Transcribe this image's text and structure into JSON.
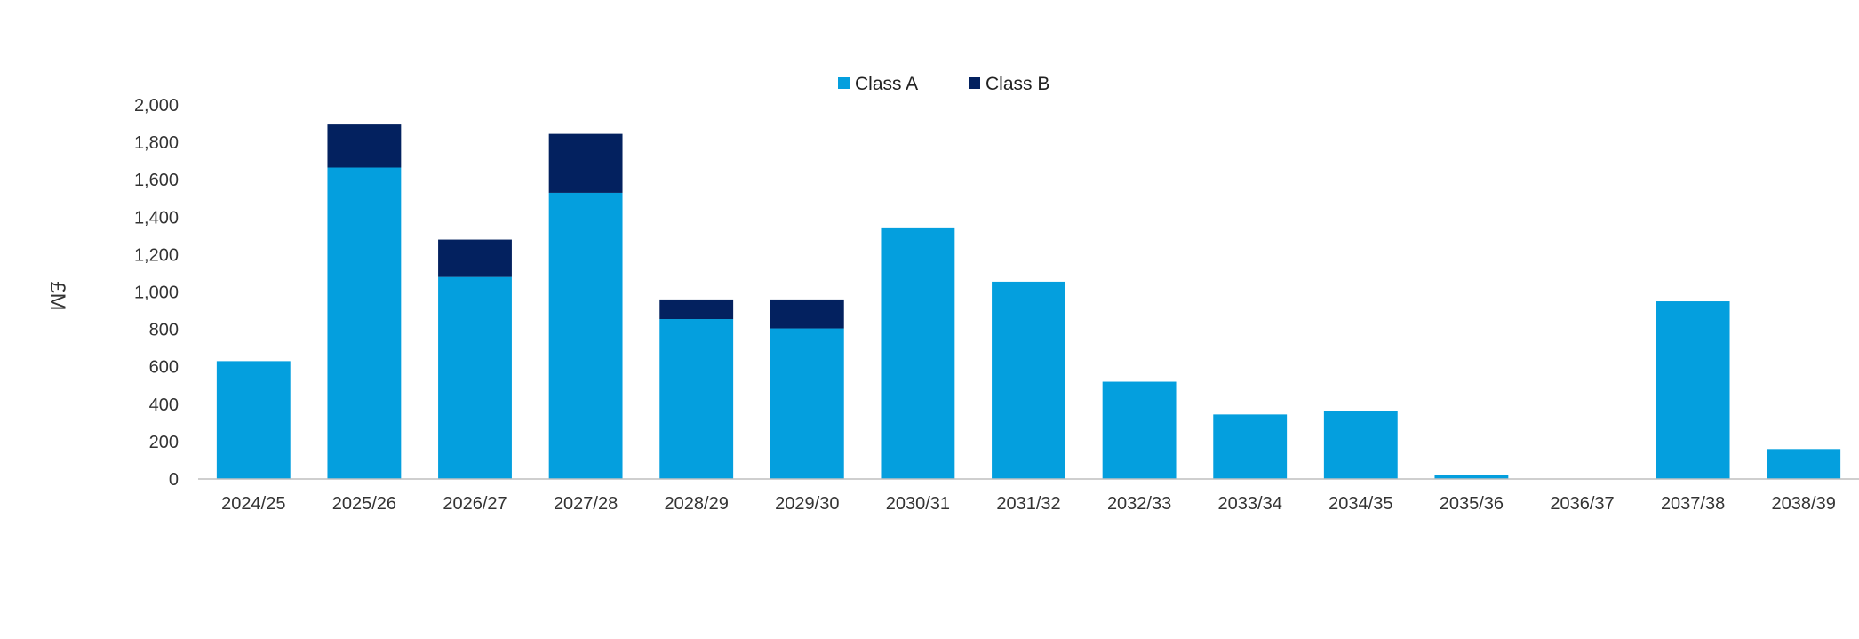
{
  "chart_data": {
    "type": "bar",
    "stacked": true,
    "categories": [
      "2024/25",
      "2025/26",
      "2026/27",
      "2027/28",
      "2028/29",
      "2029/30",
      "2030/31",
      "2031/32",
      "2032/33",
      "2033/34",
      "2034/35",
      "2035/36",
      "2036/37",
      "2037/38",
      "2038/39"
    ],
    "series": [
      {
        "name": "Class A",
        "color": "#049fde",
        "values": [
          630,
          1665,
          1080,
          1530,
          855,
          805,
          1345,
          1055,
          520,
          345,
          365,
          20,
          0,
          950,
          160
        ]
      },
      {
        "name": "Class B",
        "color": "#03215f",
        "values": [
          0,
          230,
          200,
          315,
          105,
          155,
          0,
          0,
          0,
          0,
          0,
          0,
          0,
          0,
          0
        ]
      }
    ],
    "ylabel": "£M",
    "ylim": [
      0,
      2000
    ],
    "yticks": [
      0,
      200,
      400,
      600,
      800,
      1000,
      1200,
      1400,
      1600,
      1800,
      2000
    ],
    "ytick_labels": [
      "0",
      "200",
      "400",
      "600",
      "800",
      "1,000",
      "1,200",
      "1,400",
      "1,600",
      "1,800",
      "2,000"
    ],
    "grid": false,
    "legend_position": "top-center"
  }
}
